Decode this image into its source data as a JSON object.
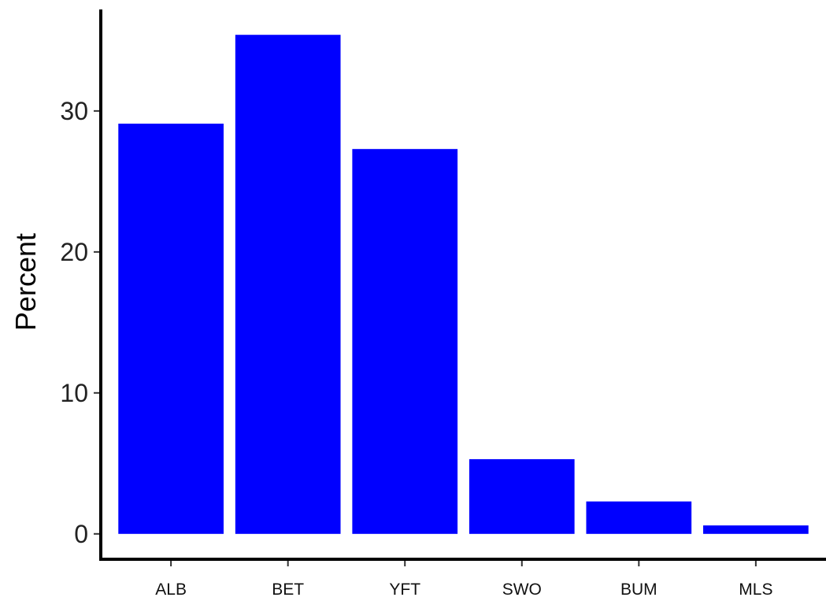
{
  "chart_data": {
    "type": "bar",
    "title": "",
    "xlabel": "",
    "ylabel": "Percent",
    "categories": [
      "ALB",
      "BET",
      "YFT",
      "SWO",
      "BUM",
      "MLS"
    ],
    "values": [
      29.1,
      35.4,
      27.3,
      5.3,
      2.3,
      0.6
    ],
    "ylim": [
      -1.8,
      37.2
    ],
    "yticks": [
      0,
      10,
      20,
      30
    ],
    "ytick_labels": [
      "0",
      "10",
      "20",
      "30"
    ],
    "grid": false,
    "legend": "none",
    "bar_color": "#0000ff",
    "axis_color": "#000000",
    "background": "#ffffff"
  }
}
